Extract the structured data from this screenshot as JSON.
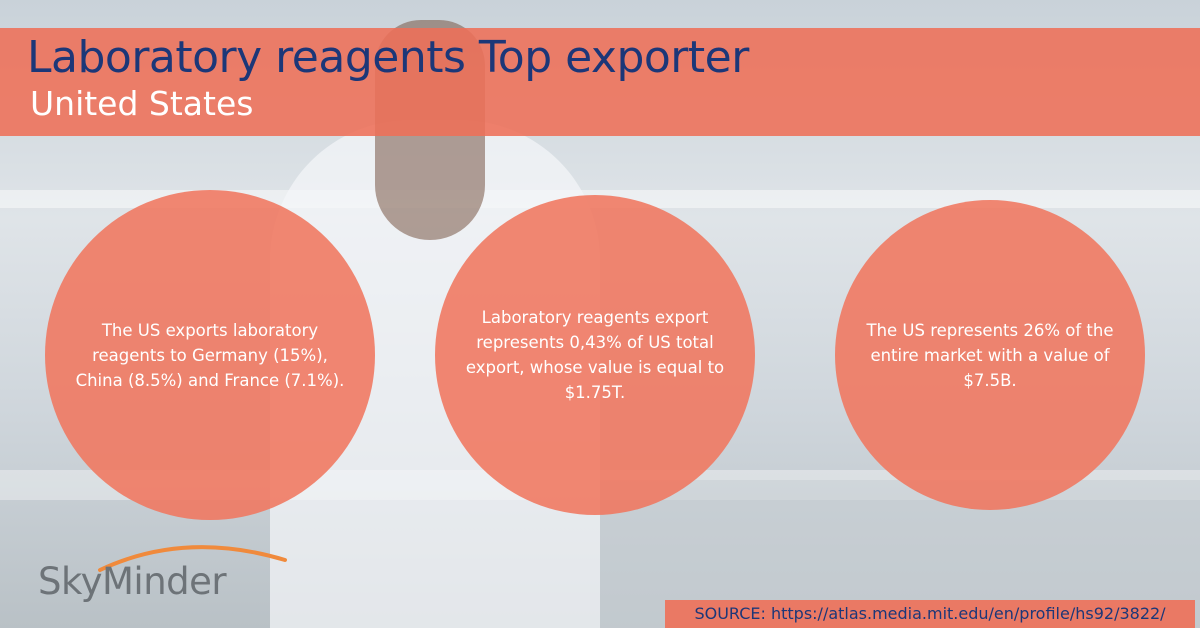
{
  "header": {
    "title": "Laboratory reagents Top exporter",
    "subtitle": "United States"
  },
  "circles": [
    {
      "lines": [
        "The US exports laboratory",
        "reagents to Germany (15%),",
        "China (8.5%) and France (7.1%)."
      ]
    },
    {
      "lines": [
        "Laboratory reagents export",
        "represents 0,43% of US total",
        "export, whose value is equal to",
        "$1.75T."
      ]
    },
    {
      "lines": [
        "The US represents 26% of the",
        "entire market with a value of",
        "$7.5B."
      ]
    }
  ],
  "logo": "SkyMinder",
  "source": "SOURCE: https://atlas.media.mit.edu/en/profile/hs92/3822/"
}
